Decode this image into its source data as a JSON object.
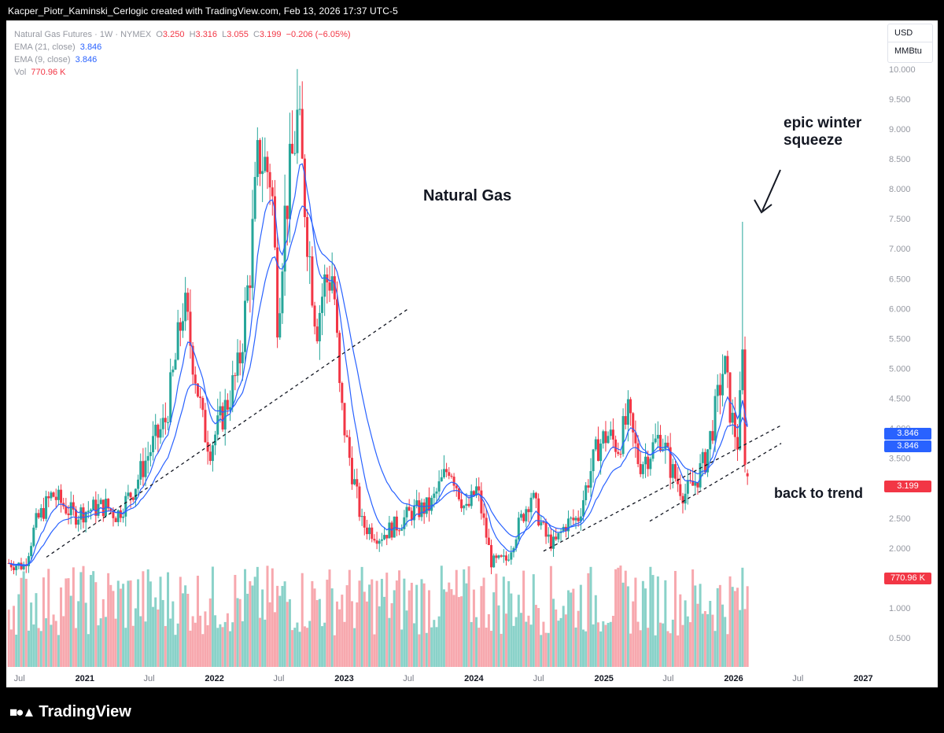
{
  "header": {
    "credit": "Kacper_Piotr_Kaminski_Cerlogic created with TradingView.com, Feb 13, 2026 17:37 UTC-5"
  },
  "legend": {
    "symbol": "Natural Gas Futures · 1W · NYMEX",
    "o_label": "O",
    "o_value": "3.250",
    "h_label": "H",
    "h_value": "3.316",
    "l_label": "L",
    "l_value": "3.055",
    "c_label": "C",
    "c_value": "3.199",
    "change": "−0.206 (−6.05%)",
    "ema21_label": "EMA (21, close)",
    "ema21_value": "3.846",
    "ema9_label": "EMA (9, close)",
    "ema9_value": "3.846",
    "vol_label": "Vol",
    "vol_value": "770.96 K"
  },
  "units": {
    "currency": "USD",
    "unit": "MMBtu"
  },
  "annotations": {
    "title": "Natural Gas",
    "squeeze_line1": "epic winter",
    "squeeze_line2": "squeeze",
    "trend": "back to trend"
  },
  "price_tags": {
    "ema21": "3.846",
    "ema9": "3.846",
    "last": "3.199",
    "volume": "770.96 K"
  },
  "brand": {
    "name": "TradingView",
    "logo": "TV-logo-icon"
  },
  "colors": {
    "up": "#26a69a",
    "down": "#f23645",
    "ema": "#2962ff",
    "vol_up": "#8ad2c9",
    "vol_down": "#f7a8ae"
  },
  "chart_data": {
    "type": "candlestick",
    "title": "Natural Gas",
    "timeframe": "1W",
    "y_axis": {
      "ticks": [
        0.5,
        1.0,
        1.5,
        2.0,
        2.5,
        3.0,
        3.5,
        4.0,
        4.5,
        5.0,
        5.5,
        6.0,
        6.5,
        7.0,
        7.5,
        8.0,
        8.5,
        9.0,
        9.5,
        10.0
      ],
      "tick_labels": [
        "0.500",
        "1.000",
        "1.500",
        "2.000",
        "2.500",
        "3.000",
        "3.500",
        "4.000",
        "4.500",
        "5.000",
        "5.500",
        "6.000",
        "6.500",
        "7.000",
        "7.500",
        "8.000",
        "8.500",
        "9.000",
        "9.500",
        "10.000"
      ],
      "range": [
        0.2,
        10.05
      ]
    },
    "x_axis": {
      "ticks": [
        "Jul",
        "2021",
        "Jul",
        "2022",
        "Jul",
        "2023",
        "Jul",
        "2024",
        "Jul",
        "2025",
        "Jul",
        "2026",
        "Jul",
        "2027"
      ],
      "range": [
        "2020-05-25",
        "2027-02-20"
      ]
    },
    "price_path": [
      [
        "2020-06-01",
        1.75
      ],
      [
        "2020-07-15",
        1.7
      ],
      [
        "2020-08-15",
        2.4
      ],
      [
        "2020-10-01",
        2.9
      ],
      [
        "2020-11-05",
        2.7
      ],
      [
        "2020-12-01",
        2.55
      ],
      [
        "2021-01-15",
        2.65
      ],
      [
        "2021-03-01",
        2.7
      ],
      [
        "2021-04-01",
        2.55
      ],
      [
        "2021-05-15",
        2.95
      ],
      [
        "2021-07-01",
        3.6
      ],
      [
        "2021-08-15",
        4.1
      ],
      [
        "2021-09-10",
        5.0
      ],
      [
        "2021-10-06",
        6.1
      ],
      [
        "2021-11-01",
        5.2
      ],
      [
        "2021-12-01",
        4.0
      ],
      [
        "2021-12-20",
        3.7
      ],
      [
        "2022-01-10",
        4.0
      ],
      [
        "2022-02-10",
        4.5
      ],
      [
        "2022-03-10",
        5.0
      ],
      [
        "2022-04-10",
        6.6
      ],
      [
        "2022-05-05",
        8.6
      ],
      [
        "2022-06-10",
        8.2
      ],
      [
        "2022-06-28",
        5.8
      ],
      [
        "2022-07-15",
        7.4
      ],
      [
        "2022-08-23",
        9.2
      ],
      [
        "2022-09-25",
        6.9
      ],
      [
        "2022-10-15",
        5.7
      ],
      [
        "2022-11-05",
        6.4
      ],
      [
        "2022-12-01",
        6.6
      ],
      [
        "2022-12-20",
        4.5
      ],
      [
        "2023-01-10",
        3.7
      ],
      [
        "2023-02-20",
        2.4
      ],
      [
        "2023-04-10",
        2.2
      ],
      [
        "2023-06-01",
        2.4
      ],
      [
        "2023-07-10",
        2.6
      ],
      [
        "2023-09-01",
        2.7
      ],
      [
        "2023-10-25",
        3.4
      ],
      [
        "2023-12-10",
        2.6
      ],
      [
        "2024-01-10",
        3.0
      ],
      [
        "2024-02-20",
        1.75
      ],
      [
        "2024-04-01",
        1.8
      ],
      [
        "2024-05-01",
        2.3
      ],
      [
        "2024-06-10",
        2.9
      ],
      [
        "2024-07-20",
        2.2
      ],
      [
        "2024-08-15",
        2.05
      ],
      [
        "2024-09-15",
        2.4
      ],
      [
        "2024-10-20",
        2.5
      ],
      [
        "2024-11-20",
        3.2
      ],
      [
        "2024-12-15",
        3.7
      ],
      [
        "2025-01-10",
        3.9
      ],
      [
        "2025-02-10",
        3.7
      ],
      [
        "2025-03-10",
        4.2
      ],
      [
        "2025-04-10",
        3.4
      ],
      [
        "2025-05-10",
        3.6
      ],
      [
        "2025-06-10",
        3.9
      ],
      [
        "2025-07-10",
        3.3
      ],
      [
        "2025-08-15",
        2.9
      ],
      [
        "2025-09-10",
        3.05
      ],
      [
        "2025-10-15",
        3.5
      ],
      [
        "2025-11-15",
        4.4
      ],
      [
        "2025-12-05",
        5.1
      ],
      [
        "2025-12-25",
        4.2
      ],
      [
        "2026-01-15",
        3.7
      ],
      [
        "2026-01-25",
        5.4
      ],
      [
        "2026-02-01",
        3.6
      ],
      [
        "2026-02-13",
        3.2
      ]
    ],
    "notable_highs": [
      [
        "2022-08-23",
        10.0
      ],
      [
        "2026-01-25",
        7.45
      ]
    ],
    "last_bar": {
      "open": 3.25,
      "high": 3.316,
      "low": 3.055,
      "close": 3.199
    },
    "ema": [
      {
        "name": "EMA (21, close)",
        "last": 3.846
      },
      {
        "name": "EMA (9, close)",
        "last": 3.846
      }
    ],
    "volume_last": "770.96 K",
    "trendlines": [
      {
        "style": "dashed",
        "from": [
          "2020-09-15",
          1.85
        ],
        "to": [
          "2023-07-01",
          6.0
        ]
      },
      {
        "style": "dashed",
        "from": [
          "2024-07-15",
          1.95
        ],
        "to": [
          "2026-05-15",
          4.05
        ]
      },
      {
        "style": "dashed",
        "from": [
          "2025-05-10",
          2.45
        ],
        "to": [
          "2026-05-15",
          3.75
        ]
      }
    ]
  }
}
